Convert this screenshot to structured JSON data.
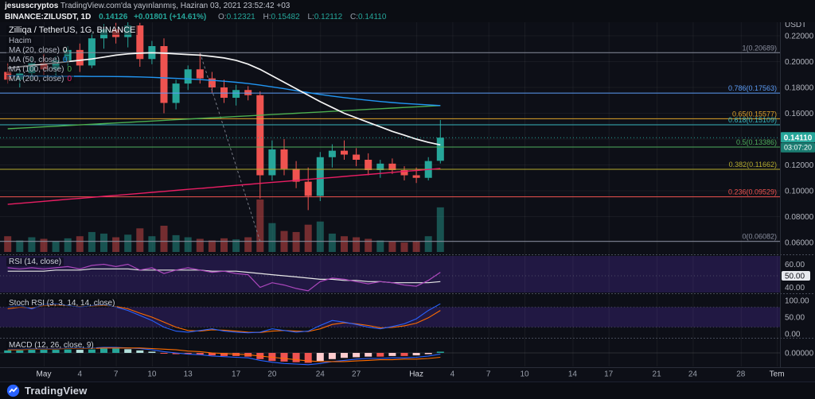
{
  "header": {
    "byline_user": "jesusscryptos",
    "byline_rest": "TradingView.com'da yayınlanmış, Haziran 03, 2021 23:52:42 +03",
    "symbol": "BINANCE:ZILUSDT, 1D",
    "last_price": "0.14126",
    "change": "+0.01801 (+14.61%)",
    "ohlc": {
      "o_label": "O:",
      "o_value": "0.12321",
      "h_label": "H:",
      "h_value": "0.15482",
      "l_label": "L:",
      "l_value": "0.12112",
      "c_label": "C:",
      "c_value": "0.14110"
    }
  },
  "legend": {
    "title": "Zilliqa / TetherUS, 1G, BINANCE",
    "volume_label": "Hacim",
    "mas": [
      {
        "label": "MA (20, close)",
        "value": "0",
        "color": "#f5f5f5"
      },
      {
        "label": "MA (50, close)",
        "value": "0",
        "color": "#2196f3"
      },
      {
        "label": "MA (100, close)",
        "value": "0",
        "color": "#4caf50"
      },
      {
        "label": "MA (200, close)",
        "value": "0",
        "color": "#e91e63"
      }
    ]
  },
  "panes": {
    "rsi_label": "RSI (14, close)",
    "stoch_label": "Stoch RSI (3, 3, 14, 14, close)",
    "macd_label": "MACD (12, 26, close, 9)"
  },
  "axis": {
    "currency": "USDT",
    "price_ticks": [
      0.22,
      0.2,
      0.18,
      0.16,
      0.14,
      0.12,
      0.1,
      0.08,
      0.06
    ],
    "price_badge": "0.14110",
    "countdown": "03:07:20",
    "rsi_ticks": [
      {
        "v": 60,
        "t": "60.00"
      },
      {
        "v": 50,
        "t": "50.00",
        "badge": true
      },
      {
        "v": 40,
        "t": "40.00"
      }
    ],
    "stoch_ticks": [
      {
        "v": 100,
        "t": "100.00"
      },
      {
        "v": 50,
        "t": "50.00"
      },
      {
        "v": 0,
        "t": "0.00"
      }
    ],
    "macd_ticks": [
      {
        "v": 0,
        "t": "0.00000"
      }
    ]
  },
  "fib_levels": [
    {
      "label": "1(0.20689)",
      "price": 0.20689,
      "color": "#8a8f9f"
    },
    {
      "label": "0.786(0.17563)",
      "price": 0.17563,
      "color": "#5b9cf6"
    },
    {
      "label": "0.65(0.15577)",
      "price": 0.15577,
      "color": "#e0a42b"
    },
    {
      "label": "0.618(0.15109)",
      "price": 0.15109,
      "color": "#36b5bd"
    },
    {
      "label": "0.5(0.13386)",
      "price": 0.13386,
      "color": "#4fae5c"
    },
    {
      "label": "0.382(0.11662)",
      "price": 0.11662,
      "color": "#b5ac2e"
    },
    {
      "label": "0.236(0.09529)",
      "price": 0.09529,
      "color": "#f0534f"
    },
    {
      "label": "0(0.06082)",
      "price": 0.06082,
      "color": "#8a8f9f"
    }
  ],
  "time_axis": [
    {
      "t": "May",
      "d": 0,
      "major": true
    },
    {
      "t": "4",
      "d": 3
    },
    {
      "t": "7",
      "d": 6
    },
    {
      "t": "10",
      "d": 9
    },
    {
      "t": "13",
      "d": 12
    },
    {
      "t": "17",
      "d": 16
    },
    {
      "t": "20",
      "d": 19
    },
    {
      "t": "24",
      "d": 23
    },
    {
      "t": "27",
      "d": 26
    },
    {
      "t": "Haz",
      "d": 31,
      "major": true
    },
    {
      "t": "4",
      "d": 34
    },
    {
      "t": "7",
      "d": 37
    },
    {
      "t": "10",
      "d": 40
    },
    {
      "t": "14",
      "d": 44
    },
    {
      "t": "17",
      "d": 47
    },
    {
      "t": "21",
      "d": 51
    },
    {
      "t": "24",
      "d": 54
    },
    {
      "t": "28",
      "d": 58
    },
    {
      "t": "Tem",
      "d": 61,
      "major": true
    }
  ],
  "footer": {
    "brand": "TradingView"
  },
  "chart_data": {
    "type": "candlestick",
    "title": "Zilliqa / TetherUS, 1G, BINANCE",
    "interval": "1D",
    "price_ylim": [
      0.053,
      0.2305
    ],
    "current_price": 0.1411,
    "colors": {
      "up": "#26a69a",
      "down": "#ef5350",
      "ma20": "#f5f5f5",
      "ma50": "#2196f3",
      "ma100": "#4caf50",
      "ma200": "#e91e63",
      "rsi": "#ab47bc",
      "rsi_ma": "#e8e8e8",
      "stoch_k": "#2962ff",
      "stoch_d": "#ff6d00",
      "macd": "#2962ff",
      "signal": "#ff6d00",
      "hist_up": "#26a69a",
      "hist_up_weak": "#b2dfdb",
      "hist_down": "#ef5350",
      "hist_down_weak": "#fccbcd",
      "band": "rgba(81,45,168,0.30)"
    },
    "candles": [
      [
        0.192,
        0.199,
        0.183,
        0.186
      ],
      [
        0.186,
        0.194,
        0.18,
        0.191
      ],
      [
        0.191,
        0.203,
        0.186,
        0.199
      ],
      [
        0.199,
        0.206,
        0.19,
        0.194
      ],
      [
        0.194,
        0.204,
        0.188,
        0.201
      ],
      [
        0.201,
        0.212,
        0.196,
        0.209
      ],
      [
        0.209,
        0.214,
        0.192,
        0.197
      ],
      [
        0.197,
        0.222,
        0.195,
        0.218
      ],
      [
        0.218,
        0.229,
        0.21,
        0.225
      ],
      [
        0.225,
        0.23,
        0.214,
        0.219
      ],
      [
        0.219,
        0.231,
        0.211,
        0.228
      ],
      [
        0.228,
        0.23,
        0.196,
        0.202
      ],
      [
        0.202,
        0.216,
        0.198,
        0.212
      ],
      [
        0.212,
        0.218,
        0.16,
        0.168
      ],
      [
        0.168,
        0.186,
        0.163,
        0.183
      ],
      [
        0.183,
        0.197,
        0.178,
        0.194
      ],
      [
        0.194,
        0.2069,
        0.183,
        0.187
      ],
      [
        0.187,
        0.192,
        0.176,
        0.18
      ],
      [
        0.18,
        0.186,
        0.168,
        0.172
      ],
      [
        0.172,
        0.182,
        0.166,
        0.178
      ],
      [
        0.178,
        0.181,
        0.17,
        0.174
      ],
      [
        0.174,
        0.177,
        0.094,
        0.112
      ],
      [
        0.112,
        0.139,
        0.108,
        0.132
      ],
      [
        0.132,
        0.14,
        0.112,
        0.117
      ],
      [
        0.117,
        0.123,
        0.102,
        0.107
      ],
      [
        0.107,
        0.118,
        0.085,
        0.096
      ],
      [
        0.096,
        0.13,
        0.092,
        0.126
      ],
      [
        0.126,
        0.136,
        0.118,
        0.131
      ],
      [
        0.131,
        0.139,
        0.124,
        0.128
      ],
      [
        0.128,
        0.133,
        0.119,
        0.124
      ],
      [
        0.124,
        0.129,
        0.112,
        0.116
      ],
      [
        0.116,
        0.124,
        0.11,
        0.121
      ],
      [
        0.121,
        0.125,
        0.113,
        0.116
      ],
      [
        0.116,
        0.119,
        0.108,
        0.112
      ],
      [
        0.112,
        0.118,
        0.106,
        0.11
      ],
      [
        0.11,
        0.126,
        0.108,
        0.123
      ],
      [
        0.12321,
        0.15482,
        0.12112,
        0.1411
      ]
    ],
    "volume": [
      0.3,
      0.22,
      0.28,
      0.25,
      0.2,
      0.26,
      0.3,
      0.38,
      0.35,
      0.28,
      0.33,
      0.45,
      0.3,
      0.5,
      0.32,
      0.28,
      0.25,
      0.22,
      0.26,
      0.24,
      0.28,
      1.0,
      0.55,
      0.4,
      0.38,
      0.52,
      0.58,
      0.35,
      0.3,
      0.28,
      0.25,
      0.22,
      0.2,
      0.18,
      0.2,
      0.3,
      0.85
    ],
    "overlays": {
      "ma20": [
        0.195,
        0.196,
        0.197,
        0.198,
        0.199,
        0.2,
        0.201,
        0.202,
        0.2035,
        0.205,
        0.206,
        0.2065,
        0.2068,
        0.2065,
        0.206,
        0.2055,
        0.205,
        0.204,
        0.2028,
        0.201,
        0.198,
        0.194,
        0.189,
        0.184,
        0.179,
        0.174,
        0.169,
        0.1645,
        0.16,
        0.1565,
        0.153,
        0.1495,
        0.146,
        0.143,
        0.14,
        0.1375,
        0.1355
      ],
      "ma50": [
        0.189,
        0.189,
        0.1889,
        0.1888,
        0.1887,
        0.1886,
        0.1886,
        0.1885,
        0.1885,
        0.1884,
        0.1883,
        0.1881,
        0.1878,
        0.1874,
        0.187,
        0.1866,
        0.1861,
        0.1855,
        0.1848,
        0.184,
        0.183,
        0.1818,
        0.1804,
        0.179,
        0.1775,
        0.176,
        0.1746,
        0.1733,
        0.1721,
        0.171,
        0.17,
        0.1691,
        0.1683,
        0.1676,
        0.167,
        0.1665,
        0.166
      ],
      "ma100": [
        0.148,
        0.1485,
        0.149,
        0.1495,
        0.15,
        0.1505,
        0.151,
        0.1515,
        0.152,
        0.1525,
        0.153,
        0.1535,
        0.154,
        0.1545,
        0.155,
        0.1555,
        0.156,
        0.1565,
        0.157,
        0.1575,
        0.158,
        0.1585,
        0.159,
        0.1595,
        0.16,
        0.1605,
        0.161,
        0.1615,
        0.162,
        0.1625,
        0.163,
        0.1635,
        0.164,
        0.1645,
        0.165,
        0.1655,
        0.166
      ],
      "ma200": [
        0.0895,
        0.0903,
        0.091,
        0.0918,
        0.0926,
        0.0934,
        0.0941,
        0.0949,
        0.0957,
        0.0964,
        0.0972,
        0.098,
        0.0988,
        0.0995,
        0.1003,
        0.1011,
        0.1018,
        0.1026,
        0.1034,
        0.1042,
        0.1049,
        0.1057,
        0.1065,
        0.1072,
        0.108,
        0.1088,
        0.1096,
        0.1103,
        0.1111,
        0.1119,
        0.1126,
        0.1134,
        0.1142,
        0.115,
        0.1157,
        0.1165,
        0.1173
      ]
    },
    "rsi": {
      "line": [
        57,
        56,
        57,
        56,
        57,
        58,
        56,
        59,
        60,
        58,
        60,
        55,
        57,
        52,
        55,
        57,
        55,
        53,
        54,
        52,
        51,
        40,
        44,
        42,
        39,
        37,
        45,
        48,
        47,
        45,
        43,
        45,
        44,
        42,
        41,
        46,
        53
      ],
      "ma": [
        54,
        54,
        54,
        54,
        55,
        55,
        55,
        56,
        56,
        56,
        56,
        55,
        55,
        55,
        55,
        55,
        55,
        54,
        54,
        54,
        53,
        52,
        51,
        50,
        49,
        48,
        47,
        47,
        46,
        46,
        45,
        45,
        44,
        44,
        44,
        44,
        45
      ]
    },
    "stoch_rsi": {
      "k": [
        80,
        85,
        75,
        88,
        90,
        85,
        80,
        85,
        88,
        80,
        70,
        55,
        40,
        20,
        8,
        5,
        10,
        15,
        8,
        5,
        3,
        5,
        15,
        10,
        5,
        8,
        25,
        40,
        35,
        28,
        20,
        15,
        22,
        30,
        45,
        70,
        90
      ],
      "d": [
        75,
        80,
        78,
        84,
        86,
        84,
        82,
        83,
        85,
        82,
        75,
        62,
        50,
        35,
        20,
        10,
        8,
        12,
        11,
        8,
        5,
        4,
        8,
        10,
        8,
        7,
        15,
        28,
        33,
        30,
        25,
        18,
        19,
        24,
        32,
        48,
        70
      ]
    },
    "macd": {
      "macd": [
        0.006,
        0.006,
        0.007,
        0.007,
        0.007,
        0.008,
        0.008,
        0.008,
        0.009,
        0.009,
        0.008,
        0.007,
        0.005,
        0.002,
        0.0,
        -0.002,
        -0.003,
        -0.005,
        -0.006,
        -0.007,
        -0.008,
        -0.012,
        -0.015,
        -0.017,
        -0.018,
        -0.019,
        -0.017,
        -0.014,
        -0.012,
        -0.01,
        -0.009,
        -0.009,
        -0.008,
        -0.008,
        -0.007,
        -0.005,
        -0.002
      ],
      "signal": [
        0.005,
        0.005,
        0.006,
        0.006,
        0.006,
        0.007,
        0.007,
        0.007,
        0.008,
        0.008,
        0.008,
        0.008,
        0.007,
        0.006,
        0.005,
        0.003,
        0.002,
        0.0,
        -0.001,
        -0.002,
        -0.003,
        -0.005,
        -0.007,
        -0.009,
        -0.011,
        -0.013,
        -0.014,
        -0.014,
        -0.014,
        -0.013,
        -0.012,
        -0.011,
        -0.011,
        -0.01,
        -0.01,
        -0.009,
        -0.007
      ],
      "hist": [
        0.004,
        0.004,
        0.005,
        0.005,
        0.005,
        0.006,
        0.005,
        0.006,
        0.007,
        0.007,
        0.006,
        0.004,
        0.002,
        -0.001,
        -0.002,
        -0.002,
        -0.003,
        -0.004,
        -0.005,
        -0.005,
        -0.006,
        -0.01,
        -0.013,
        -0.014,
        -0.015,
        -0.016,
        -0.013,
        -0.01,
        -0.008,
        -0.007,
        -0.006,
        -0.006,
        -0.005,
        -0.005,
        -0.004,
        -0.002,
        0.002
      ]
    }
  }
}
